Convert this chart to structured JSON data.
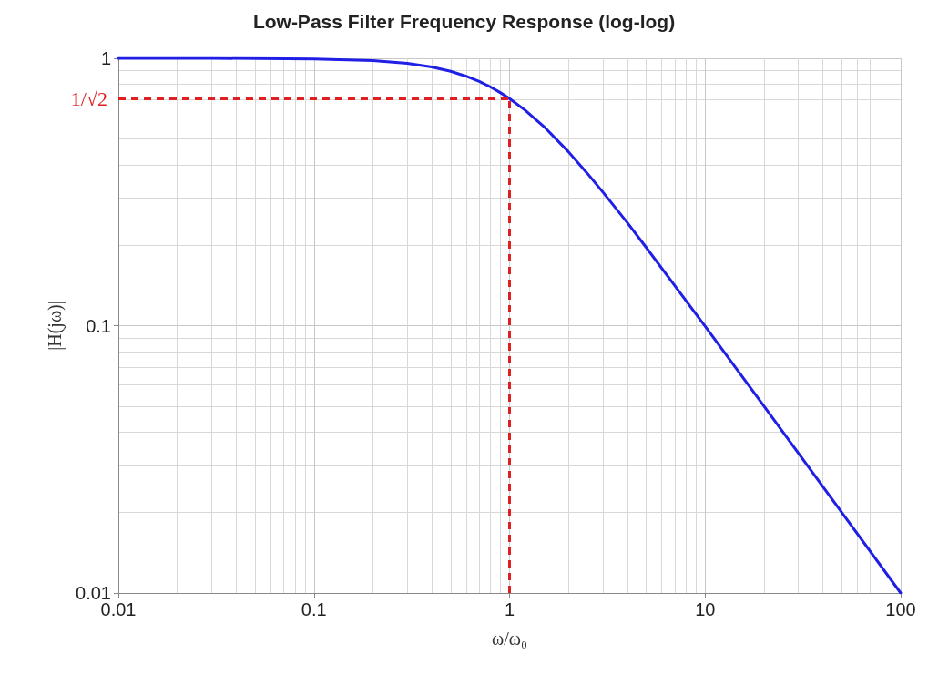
{
  "chart_data": {
    "type": "line",
    "title": "Low-Pass Filter Frequency Response (log-log)",
    "xlabel": "ω/ω₀",
    "ylabel": "|H(jω)|",
    "series": [
      {
        "color": "#1f1fe6",
        "x": [
          0.01,
          0.03,
          0.1,
          0.2,
          0.3,
          0.4,
          0.5,
          0.6,
          0.7,
          0.8,
          0.9,
          1,
          1.2,
          1.5,
          2,
          2.5,
          3,
          4,
          5,
          7,
          10,
          20,
          50,
          100
        ],
        "values": [
          1,
          1,
          0.995,
          0.98,
          0.958,
          0.928,
          0.894,
          0.857,
          0.819,
          0.781,
          0.743,
          0.707,
          0.64,
          0.555,
          0.447,
          0.371,
          0.316,
          0.243,
          0.196,
          0.141,
          0.0995,
          0.05,
          0.02,
          0.01
        ]
      }
    ],
    "log": "xy",
    "xlim": [
      0.01,
      100
    ],
    "ylim": [
      0.01,
      1
    ],
    "xticks": [
      0.01,
      0.1,
      1,
      10,
      100
    ],
    "yticks": [
      0.01,
      0.1,
      1
    ],
    "ref_lines": [
      {
        "axis": "y",
        "value": 0.707,
        "label": "1/√2",
        "color": "#e02020",
        "line_style": "dashed"
      },
      {
        "axis": "x",
        "value": 1,
        "color": "#e02020",
        "line_style": "dashed"
      }
    ],
    "grid": true,
    "marker": "none",
    "line_style": "solid"
  }
}
